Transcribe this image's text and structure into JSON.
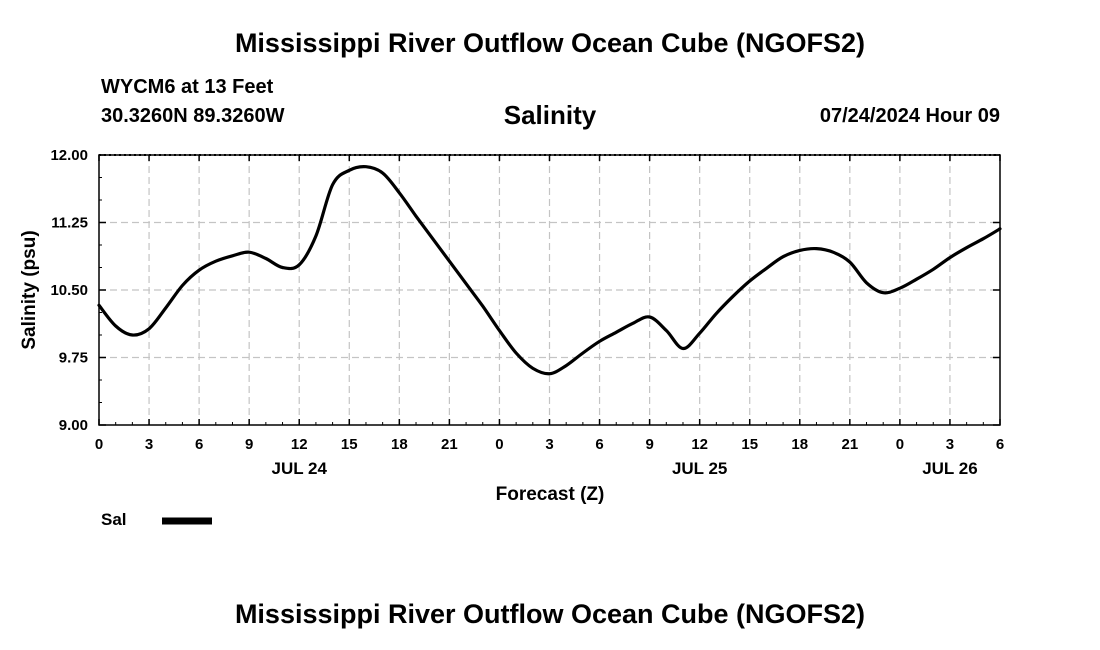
{
  "page": {
    "title_top": "Mississippi River Outflow Ocean Cube (NGOFS2)",
    "title_bottom": "Mississippi River Outflow Ocean Cube (NGOFS2)",
    "station": "WYCM6 at 13 Feet",
    "coords": "30.3260N  89.3260W",
    "datetime": "07/24/2024 Hour 09"
  },
  "chart_data": {
    "type": "line",
    "title": "Salinity",
    "xlabel": "Forecast (Z)",
    "ylabel": "Salinity (psu)",
    "ylim": [
      9.0,
      12.0
    ],
    "xlim": [
      0,
      54
    ],
    "y_ticks": [
      "12.00",
      "11.25",
      "10.50",
      "9.75",
      "9.00"
    ],
    "x_ticks": [
      "0",
      "3",
      "6",
      "9",
      "12",
      "15",
      "18",
      "21",
      "0",
      "3",
      "6",
      "9",
      "12",
      "15",
      "18",
      "21",
      "0",
      "3",
      "6"
    ],
    "day_labels": [
      {
        "text": "JUL 24",
        "hour": 12
      },
      {
        "text": "JUL 25",
        "hour": 36
      },
      {
        "text": "JUL 26",
        "hour": 51
      }
    ],
    "grid": true,
    "series": [
      {
        "name": "Sal",
        "color": "#000000",
        "x": [
          0,
          1,
          2,
          3,
          4,
          5,
          6,
          7,
          8,
          9,
          10,
          11,
          12,
          13,
          14,
          15,
          16,
          17,
          18,
          19,
          20,
          21,
          22,
          23,
          24,
          25,
          26,
          27,
          28,
          29,
          30,
          31,
          32,
          33,
          34,
          35,
          36,
          37,
          38,
          39,
          40,
          41,
          42,
          43,
          44,
          45,
          46,
          47,
          48,
          49,
          50,
          51,
          52,
          53,
          54
        ],
        "values": [
          10.33,
          10.1,
          10.0,
          10.07,
          10.3,
          10.55,
          10.72,
          10.82,
          10.88,
          10.92,
          10.85,
          10.75,
          10.78,
          11.1,
          11.67,
          11.83,
          11.87,
          11.8,
          11.58,
          11.32,
          11.07,
          10.82,
          10.57,
          10.32,
          10.05,
          9.8,
          9.63,
          9.57,
          9.66,
          9.8,
          9.93,
          10.03,
          10.13,
          10.2,
          10.05,
          9.85,
          10.02,
          10.24,
          10.43,
          10.6,
          10.74,
          10.87,
          10.94,
          10.96,
          10.92,
          10.81,
          10.58,
          10.47,
          10.52,
          10.62,
          10.73,
          10.86,
          10.97,
          11.07,
          11.18
        ]
      }
    ],
    "legend": {
      "label": "Sal",
      "position": "bottom-left"
    }
  }
}
